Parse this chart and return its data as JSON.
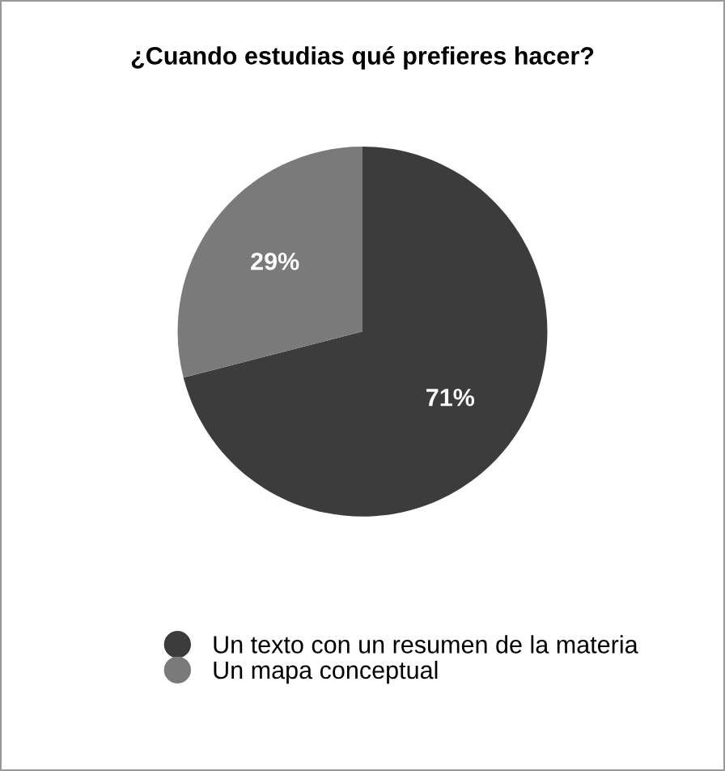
{
  "chart_data": {
    "type": "pie",
    "title": "¿Cuando estudias qué prefieres hacer?",
    "categories": [
      "Un texto con un resumen de la materia",
      "Un mapa conceptual"
    ],
    "values": [
      71,
      29
    ],
    "colors": [
      "#3c3c3c",
      "#7a7a7a"
    ],
    "value_labels": [
      "71%",
      "29%"
    ],
    "legend": "bottom"
  }
}
